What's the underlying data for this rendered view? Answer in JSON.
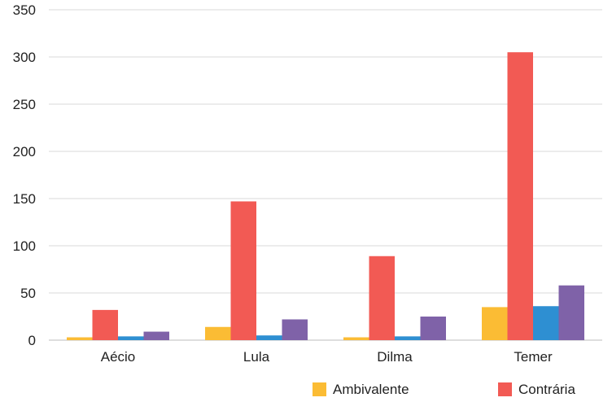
{
  "chart_data": {
    "type": "bar",
    "title": "",
    "xlabel": "",
    "ylabel": "",
    "categories": [
      "Aécio",
      "Lula",
      "Dilma",
      "Temer"
    ],
    "ylim": [
      0,
      350
    ],
    "yticks": [
      "0",
      "50",
      "100",
      "150",
      "200",
      "250",
      "300",
      "350"
    ],
    "grid": true,
    "legend_position": "bottom-right",
    "series": [
      {
        "name": "Ambivalente",
        "color": "#fbbc34",
        "values": [
          3,
          14,
          3,
          35
        ]
      },
      {
        "name": "Contrária",
        "color": "#f25a54",
        "values": [
          32,
          147,
          89,
          305
        ]
      },
      {
        "color": "#2e8fd2",
        "values": [
          4,
          5,
          4,
          36
        ]
      },
      {
        "color": "#7f62a8",
        "values": [
          9,
          22,
          25,
          58
        ]
      }
    ]
  }
}
